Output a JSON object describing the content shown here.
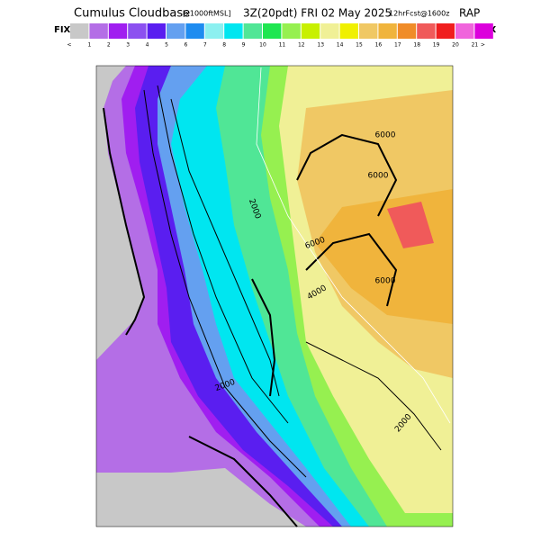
{
  "header": {
    "title": "Cumulus Cloudbase",
    "units": "[x1000ftMSL]",
    "time": "3Z(20pdt) FRI 02 May 2025",
    "forecast": "12hrFcst@1600z",
    "model": "RAP"
  },
  "legend": {
    "left_label": "FIX",
    "right_label": "FIX",
    "ticks": [
      "<",
      "1",
      "2",
      "3",
      "4",
      "5",
      "6",
      "7",
      "8",
      "9",
      "10",
      "11",
      "12",
      "13",
      "14",
      "15",
      "16",
      "17",
      "18",
      "19",
      "20",
      "21",
      ">"
    ],
    "colors": [
      "#c8c8c8",
      "#b46ee6",
      "#a01ef0",
      "#8c50f0",
      "#5a1ef0",
      "#64a0f0",
      "#1e8cf0",
      "#8cf0f0",
      "#00e6f0",
      "#50e696",
      "#1ee650",
      "#96f050",
      "#c8f000",
      "#f0f096",
      "#f0f000",
      "#f0c864",
      "#f0b43c",
      "#f08c28",
      "#f05a5a",
      "#f01e1e",
      "#f064dc",
      "#dc00dc"
    ]
  },
  "contour_labels": [
    "6000",
    "6000",
    "6000",
    "6000",
    "4000",
    "2000",
    "2000",
    "2000"
  ]
}
